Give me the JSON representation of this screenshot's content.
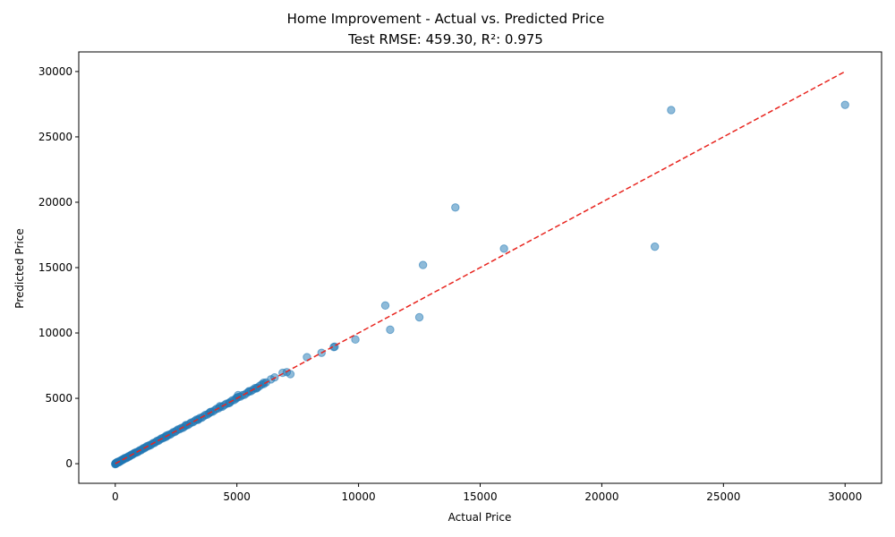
{
  "chart_data": {
    "type": "scatter",
    "title": "Home Improvement - Actual vs. Predicted Price",
    "subtitle": "Test RMSE: 459.30, R²: 0.975",
    "xlabel": "Actual Price",
    "ylabel": "Predicted Price",
    "xlim": [
      -1500,
      31500
    ],
    "ylim": [
      -1500,
      31500
    ],
    "xticks": [
      0,
      5000,
      10000,
      15000,
      20000,
      25000,
      30000
    ],
    "yticks": [
      0,
      5000,
      10000,
      15000,
      20000,
      25000,
      30000
    ],
    "grid": false,
    "point_color": "#1f77b4",
    "line_color": "#e8251f",
    "reference_line": {
      "from": [
        0,
        0
      ],
      "to": [
        30000,
        30000
      ],
      "style": "dashed"
    },
    "dense_band": {
      "from": 0,
      "to": 6200,
      "count": 110
    },
    "points": [
      [
        6550,
        6600
      ],
      [
        6880,
        6950
      ],
      [
        7050,
        7000
      ],
      [
        7200,
        6850
      ],
      [
        7880,
        8150
      ],
      [
        8480,
        8480
      ],
      [
        8980,
        8920
      ],
      [
        9020,
        8950
      ],
      [
        9870,
        9500
      ],
      [
        11100,
        12100
      ],
      [
        11300,
        10250
      ],
      [
        12500,
        11200
      ],
      [
        12650,
        15200
      ],
      [
        13980,
        19600
      ],
      [
        15980,
        16450
      ],
      [
        22180,
        16600
      ],
      [
        22850,
        27050
      ],
      [
        30000,
        27450
      ],
      [
        4980,
        5050
      ],
      [
        5050,
        5250
      ],
      [
        5500,
        5550
      ],
      [
        5800,
        5750
      ],
      [
        6100,
        6200
      ],
      [
        6400,
        6450
      ],
      [
        3900,
        3950
      ],
      [
        4300,
        4400
      ],
      [
        4700,
        4650
      ],
      [
        2900,
        2950
      ],
      [
        3400,
        3350
      ],
      [
        2100,
        2150
      ]
    ]
  }
}
